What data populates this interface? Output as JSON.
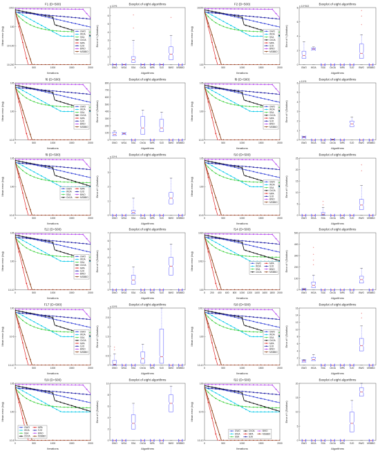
{
  "figure": {
    "conv_series_names": [
      "GWO",
      "WOA",
      "SSA",
      "ChOA",
      "MPA",
      "SJO",
      "BWO",
      "MSBBO"
    ],
    "series_colors": [
      "#2b3bd6",
      "#00c8e8",
      "#3fd13f",
      "#111111",
      "#e01e1e",
      "#1515a0",
      "#b43cf0",
      "#8b3a10"
    ],
    "conv_xlabel": "Iterations",
    "conv_ylabel": "Mean error (log)",
    "box_title": "Boxplot of eight algorithms",
    "box_xlabel": "Algorithms",
    "box_ylabel": "Error of f (Solution)",
    "box_categories": [
      "GWO",
      "WOA",
      "SSA",
      "ChOA",
      "MPA",
      "SJO",
      "BWO",
      "MSBBO"
    ],
    "x_ticks": [
      "0",
      "500",
      "1000",
      "1500",
      "2000"
    ],
    "x_ticks_dense": [
      "0",
      "200",
      "400",
      "600",
      "800",
      "1000",
      "1200",
      "1400",
      "1600",
      "1800",
      "2000"
    ]
  },
  "chart_data": [
    {
      "type": "line",
      "title": "F1 (D=500)",
      "xlim": [
        0,
        2000
      ],
      "log_y": true,
      "ytick_labels": [
        "10^10",
        "10^0",
        "10^-100",
        "10^-200"
      ],
      "legend": "right",
      "legend_cols": 1
    },
    {
      "type": "box",
      "title": "Boxplot of eight algorithms",
      "scale_label": "x 10^5",
      "ylim": [
        0,
        7
      ],
      "ytick_labels": [
        "7",
        "6",
        "5",
        "4",
        "3",
        "2",
        "1",
        "0"
      ],
      "medians": [
        0.02,
        0.02,
        0.6,
        0.02,
        0.02,
        0.02,
        1.3,
        0.0
      ],
      "q1": [
        0.01,
        0.01,
        0.3,
        0.01,
        0.01,
        0.01,
        0.6,
        0.0
      ],
      "q3": [
        0.03,
        0.03,
        1.0,
        0.03,
        0.03,
        0.03,
        2.2,
        0.0
      ],
      "w_hi": [
        0.05,
        0.05,
        3.0,
        0.05,
        0.05,
        0.05,
        3.6,
        0.0
      ],
      "outliers": [
        [],
        [],
        [
          6.1,
          4.5
        ],
        [],
        [],
        [],
        [
          5.8
        ],
        []
      ]
    },
    {
      "type": "line",
      "title": "F2 (D=500)",
      "xlim": [
        0,
        2000
      ],
      "log_y": true,
      "ytick_labels": [
        "10^200",
        "10^0"
      ],
      "legend": "right",
      "legend_cols": 1
    },
    {
      "type": "box",
      "title": "Boxplot of eight algorithms",
      "scale_label": "x 10^302",
      "ylim": [
        0,
        8
      ],
      "ytick_labels": [
        "8",
        "6",
        "4",
        "2",
        "0"
      ],
      "medians": [
        1.3,
        2.2,
        0.0,
        0.0,
        0.0,
        0.0,
        1.6,
        0.0
      ],
      "q1": [
        0.9,
        2.1,
        0.0,
        0.0,
        0.0,
        0.0,
        0.9,
        0.0
      ],
      "q3": [
        1.9,
        2.3,
        0.0,
        0.0,
        0.0,
        0.0,
        2.9,
        0.0
      ],
      "w_hi": [
        3.2,
        2.5,
        0.0,
        0.0,
        0.0,
        0.0,
        4.2,
        0.0
      ],
      "outliers": [
        [],
        [],
        [],
        [],
        [],
        [],
        [
          7.6,
          6.8,
          5.6
        ],
        []
      ]
    },
    {
      "type": "line",
      "title": "f6 (D=500)",
      "xlim": [
        0,
        2000
      ],
      "log_y": true,
      "ytick_labels": [
        "10^5",
        "10^0",
        "10^-5"
      ],
      "legend": "right",
      "legend_cols": 1
    },
    {
      "type": "box",
      "title": "Boxplot of eight algorithms",
      "scale_label": "",
      "ylim": [
        0,
        800
      ],
      "ytick_labels": [
        "800",
        "700",
        "600",
        "500",
        "400",
        "300",
        "200",
        "100",
        "0"
      ],
      "medians": [
        80,
        90,
        0,
        170,
        0,
        170,
        0,
        0
      ],
      "q1": [
        60,
        80,
        0,
        80,
        0,
        120,
        0,
        0
      ],
      "q3": [
        110,
        100,
        0,
        330,
        0,
        290,
        0,
        0
      ],
      "w_hi": [
        130,
        100,
        0,
        420,
        0,
        390,
        0,
        0
      ],
      "outliers": [
        [],
        [],
        [],
        [],
        [],
        [],
        [],
        []
      ]
    },
    {
      "type": "line",
      "title": "f8 (D=500)",
      "xlim": [
        0,
        2000
      ],
      "log_y": true,
      "ytick_labels": [
        "10^5",
        "10^0",
        "10^-5"
      ],
      "legend": "right",
      "legend_cols": 1
    },
    {
      "type": "box",
      "title": "Boxplot of eight algorithms",
      "scale_label": "x 10^5",
      "ylim": [
        0,
        6
      ],
      "ytick_labels": [
        "6",
        "5",
        "4",
        "3",
        "2",
        "1",
        "0"
      ],
      "medians": [
        0.3,
        0.0,
        0.0,
        0.05,
        0.0,
        1.7,
        0.0,
        0.0
      ],
      "q1": [
        0.25,
        0.0,
        0.0,
        0.04,
        0.0,
        1.4,
        0.0,
        0.0
      ],
      "q3": [
        0.35,
        0.0,
        0.0,
        0.06,
        0.0,
        2.0,
        0.0,
        0.0
      ],
      "w_hi": [
        0.4,
        0.0,
        0.0,
        0.08,
        0.0,
        2.4,
        0.0,
        0.0
      ],
      "outliers": [
        [],
        [],
        [],
        [],
        [],
        [],
        [],
        []
      ]
    },
    {
      "type": "line",
      "title": "f9 (D=500)",
      "xlim": [
        0,
        2000
      ],
      "log_y": true,
      "ytick_labels": [
        "10^5",
        "10^0",
        "10^-5"
      ],
      "legend": "right",
      "legend_cols": 2
    },
    {
      "type": "box",
      "title": "Boxplot of eight algorithms",
      "scale_label": "x 10^4",
      "ylim": [
        0,
        4
      ],
      "ytick_labels": [
        "4",
        "3",
        "2",
        "1",
        "0"
      ],
      "medians": [
        0.0,
        0.0,
        0.2,
        0.0,
        0.0,
        0.0,
        1.2,
        0.0
      ],
      "q1": [
        0.0,
        0.0,
        0.1,
        0.0,
        0.0,
        0.0,
        0.8,
        0.0
      ],
      "q3": [
        0.0,
        0.0,
        0.35,
        0.0,
        0.0,
        0.0,
        1.6,
        0.0
      ],
      "w_hi": [
        0.0,
        0.0,
        1.2,
        0.0,
        0.0,
        0.0,
        2.6,
        0.0
      ],
      "outliers": [
        [],
        [],
        [],
        [],
        [],
        [],
        [],
        []
      ]
    },
    {
      "type": "line",
      "title": "f10 (D=500)",
      "xlim": [
        0,
        2000
      ],
      "log_y": true,
      "ytick_labels": [
        "10^5",
        "10^0",
        "10^-5"
      ],
      "legend": "right",
      "legend_cols": 1
    },
    {
      "type": "box",
      "title": "Boxplot of eight algorithms",
      "scale_label": "",
      "ylim": [
        0,
        25
      ],
      "ytick_labels": [
        "25",
        "20",
        "15",
        "10",
        "5",
        "0"
      ],
      "medians": [
        0.0,
        0.0,
        0.5,
        0.0,
        0.0,
        0.0,
        4.5,
        0.0
      ],
      "q1": [
        0.0,
        0.0,
        0.2,
        0.0,
        0.0,
        0.0,
        2.5,
        0.0
      ],
      "q3": [
        0.0,
        0.0,
        1.2,
        0.0,
        0.0,
        0.0,
        7.0,
        0.0
      ],
      "w_hi": [
        0.0,
        0.0,
        3.5,
        0.0,
        0.0,
        0.0,
        13.0,
        0.0
      ],
      "outliers": [
        [],
        [],
        [
          6.0,
          4.5
        ],
        [],
        [],
        [],
        [
          22.0,
          19.5
        ],
        []
      ]
    },
    {
      "type": "line",
      "title": "f12 (D=500)",
      "xlim": [
        0,
        2000
      ],
      "log_y": true,
      "ytick_labels": [
        "10^5",
        "10^0",
        "10^-10"
      ],
      "legend": "right",
      "legend_cols": 1
    },
    {
      "type": "box",
      "title": "Boxplot of eight algorithms",
      "scale_label": "",
      "ylim": [
        0,
        7
      ],
      "ytick_labels": [
        "7",
        "6",
        "5",
        "4",
        "3",
        "2",
        "1",
        "0"
      ],
      "medians": [
        0.0,
        0.0,
        1.2,
        0.0,
        0.0,
        0.0,
        2.9,
        0.0
      ],
      "q1": [
        0.0,
        0.0,
        0.7,
        0.0,
        0.0,
        0.0,
        1.8,
        0.0
      ],
      "q3": [
        0.0,
        0.0,
        1.8,
        0.0,
        0.0,
        0.0,
        4.0,
        0.0
      ],
      "w_hi": [
        0.0,
        0.0,
        2.8,
        0.0,
        0.0,
        0.0,
        5.6,
        0.0
      ],
      "outliers": [
        [],
        [],
        [],
        [],
        [],
        [],
        [],
        []
      ]
    },
    {
      "type": "line",
      "title": "f14 (D=500)",
      "xlim": [
        0,
        2000
      ],
      "log_y": true,
      "ytick_labels": [
        "10^20",
        "10^10",
        "10^0"
      ],
      "legend": "right",
      "legend_cols": 2,
      "dense_ticks": true
    },
    {
      "type": "box",
      "title": "Boxplot of eight algorithms",
      "scale_label": "",
      "ylim": [
        0,
        500
      ],
      "ytick_labels": [
        "500",
        "400",
        "300",
        "200",
        "100",
        "0"
      ],
      "medians": [
        5,
        40,
        0,
        0,
        0,
        0,
        90,
        0
      ],
      "q1": [
        3,
        20,
        0,
        0,
        0,
        0,
        60,
        0
      ],
      "q3": [
        8,
        70,
        0,
        0,
        0,
        0,
        120,
        0
      ],
      "w_hi": [
        12,
        130,
        0,
        0,
        0,
        0,
        190,
        0
      ],
      "outliers": [
        [],
        [
          370,
          310,
          260,
          220
        ],
        [],
        [],
        [],
        [],
        [],
        []
      ]
    },
    {
      "type": "line",
      "title": "F17 (D=500)",
      "xlim": [
        0,
        2000
      ],
      "log_y": true,
      "ytick_labels": [
        "10^0",
        "10^-5",
        "10^-10"
      ],
      "legend": "right",
      "legend_cols": 1
    },
    {
      "type": "box",
      "title": "Boxplot of eight algorithms",
      "scale_label": "x 10^5",
      "ylim": [
        0,
        3
      ],
      "ytick_labels": [
        "3",
        "2.5",
        "2",
        "1.5",
        "1",
        "0.5",
        "0"
      ],
      "medians": [
        0.05,
        0.0,
        0.0,
        0.35,
        0.0,
        0.45,
        0.0,
        0.0
      ],
      "q1": [
        0.02,
        0.0,
        0.0,
        0.1,
        0.0,
        0.1,
        0.0,
        0.0
      ],
      "q3": [
        0.25,
        0.0,
        0.0,
        0.7,
        0.0,
        1.9,
        0.0,
        0.0
      ],
      "w_hi": [
        0.6,
        0.0,
        0.0,
        1.1,
        0.0,
        3.0,
        0.0,
        0.0
      ],
      "outliers": [
        [
          0.95,
          0.8
        ],
        [],
        [],
        [],
        [],
        [],
        [],
        []
      ]
    },
    {
      "type": "line",
      "title": "f18 (D=500)",
      "xlim": [
        0,
        2000
      ],
      "log_y": true,
      "ytick_labels": [
        "10^10",
        "10^0",
        "10^-10"
      ],
      "legend": "right",
      "legend_cols": 1
    },
    {
      "type": "box",
      "title": "Boxplot of eight algorithms",
      "scale_label": "",
      "ylim": [
        0,
        16
      ],
      "ytick_labels": [
        "16",
        "14",
        "12",
        "10",
        "8",
        "6",
        "4",
        "2",
        "0"
      ],
      "medians": [
        1.2,
        1.6,
        0.0,
        0.0,
        0.0,
        0.0,
        5.5,
        0.0
      ],
      "q1": [
        0.9,
        1.3,
        0.0,
        0.0,
        0.0,
        0.0,
        4.0,
        0.0
      ],
      "q3": [
        1.4,
        2.2,
        0.0,
        0.0,
        0.0,
        0.0,
        7.5,
        0.0
      ],
      "w_hi": [
        1.6,
        3.0,
        0.0,
        0.0,
        0.0,
        0.0,
        11.0,
        0.0
      ],
      "outliers": [
        [],
        [],
        [],
        [],
        [],
        [],
        [
          14.5,
          13.2
        ],
        []
      ]
    },
    {
      "type": "line",
      "title": "f19 (D=500)",
      "xlim": [
        0,
        2000
      ],
      "log_y": true,
      "ytick_labels": [
        "10^5",
        "10^0",
        "10^-5"
      ],
      "legend": "bottom-left",
      "legend_cols": 2
    },
    {
      "type": "box",
      "title": "Boxplot of eight algorithms",
      "scale_label": "",
      "ylim": [
        0,
        10
      ],
      "ytick_labels": [
        "10",
        "8",
        "6",
        "4",
        "2",
        "0"
      ],
      "medians": [
        0.0,
        0.0,
        3.0,
        0.0,
        0.0,
        0.0,
        6.5,
        0.0
      ],
      "q1": [
        0.0,
        0.0,
        2.0,
        0.0,
        0.0,
        0.0,
        5.0,
        0.0
      ],
      "q3": [
        0.0,
        0.0,
        4.5,
        0.0,
        0.0,
        0.0,
        8.0,
        0.0
      ],
      "w_hi": [
        0.0,
        0.0,
        6.5,
        0.0,
        0.0,
        0.0,
        9.5,
        0.0
      ],
      "outliers": [
        [],
        [],
        [],
        [],
        [],
        [],
        [],
        []
      ]
    },
    {
      "type": "line",
      "title": "f22 (D=500)",
      "xlim": [
        0,
        2000
      ],
      "log_y": true,
      "ytick_labels": [
        "10^0",
        "10^-5",
        "10^-10"
      ],
      "legend": "bottom",
      "legend_cols": 3
    },
    {
      "type": "box",
      "title": "Boxplot of eight algorithms",
      "scale_label": "",
      "ylim": [
        0,
        20
      ],
      "ytick_labels": [
        "20",
        "15",
        "10",
        "5",
        "0"
      ],
      "medians": [
        0.0,
        0.0,
        0.0,
        0.0,
        0.0,
        6.0,
        17.0,
        0.0
      ],
      "q1": [
        0.0,
        0.0,
        0.0,
        0.0,
        0.0,
        3.0,
        15.5,
        0.0
      ],
      "q3": [
        0.0,
        0.0,
        0.0,
        0.0,
        0.0,
        10.0,
        18.5,
        0.0
      ],
      "w_hi": [
        0.0,
        0.0,
        0.0,
        0.0,
        0.0,
        14.0,
        20.0,
        0.0
      ],
      "outliers": [
        [],
        [],
        [],
        [],
        [],
        [],
        [],
        []
      ]
    }
  ]
}
